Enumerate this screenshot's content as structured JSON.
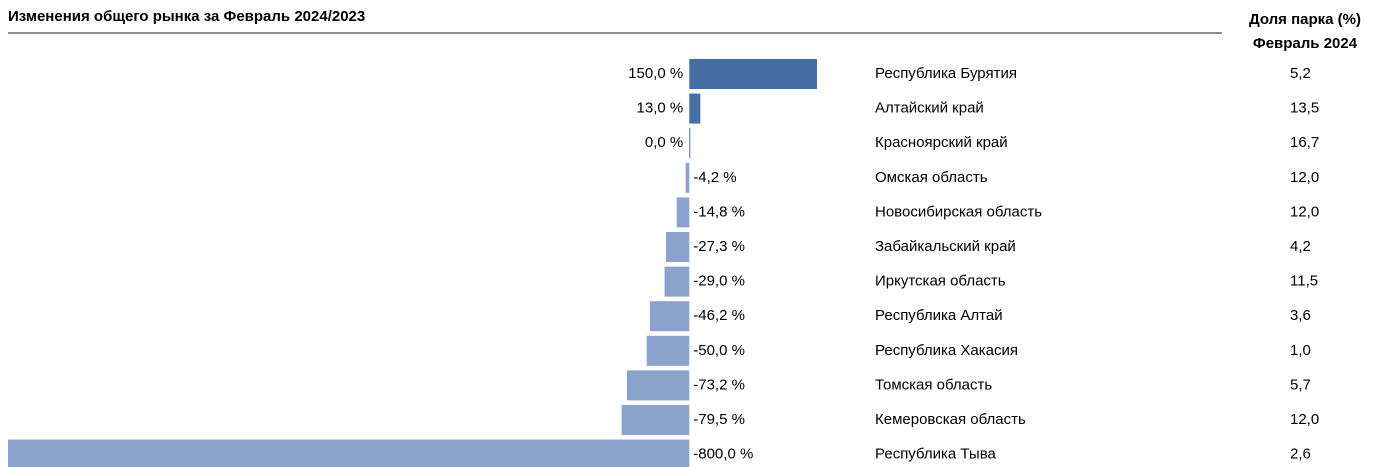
{
  "chart_data": {
    "type": "bar",
    "orientation": "horizontal",
    "title": "Изменения общего рынка за Февраль 2024/2023",
    "categories": [
      "Республика Бурятия",
      "Алтайский край",
      "Красноярский край",
      "Омская область",
      "Новосибирская область",
      "Забайкальский край",
      "Иркутская область",
      "Республика Алтай",
      "Республика Хакасия",
      "Томская область",
      "Кемеровская область",
      "Республика Тыва"
    ],
    "values": [
      150,
      13,
      0,
      -4.2,
      -14.8,
      -27.3,
      -29,
      -46.2,
      -50,
      -73.2,
      -79.5,
      -800
    ],
    "value_labels": [
      "150,0 %",
      "13,0 %",
      "0,0 %",
      "-4,2 %",
      "-14,8 %",
      "-27,3 %",
      "-29,0 %",
      "-46,2 %",
      "-50,0 %",
      "-73,2 %",
      "-79,5 %",
      "-800,0 %"
    ],
    "xlim": [
      -800,
      150
    ],
    "colors": {
      "positive": "#456ea5",
      "negative": "#8aa2cc"
    },
    "share": {
      "header": [
        "Доля парка (%)",
        "Февраль 2024"
      ],
      "values": [
        5.2,
        13.5,
        16.7,
        12,
        12,
        4.2,
        11.5,
        3.6,
        1,
        5.7,
        12,
        2.6
      ],
      "value_labels": [
        "5,2",
        "13,5",
        "16,7",
        "12,0",
        "12,0",
        "4,2",
        "11,5",
        "3,6",
        "1,0",
        "5,7",
        "12,0",
        "2,6"
      ]
    }
  }
}
